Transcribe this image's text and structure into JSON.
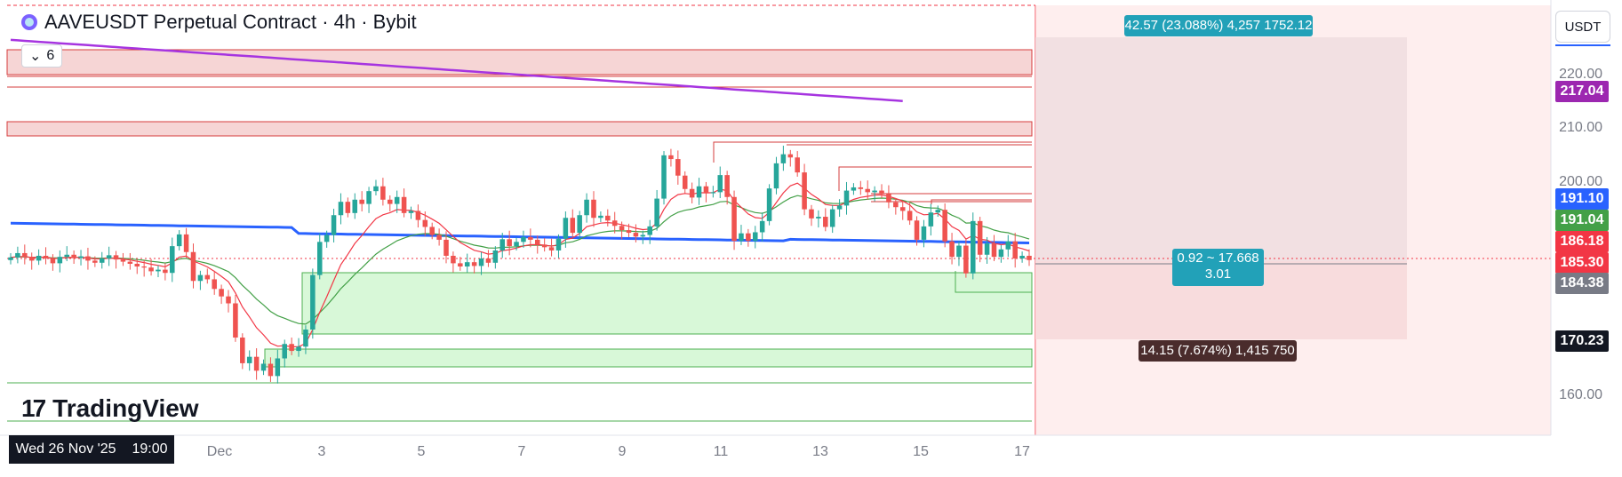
{
  "header": {
    "title": "AAVEUSDT Perpetual Contract · 4h · Bybit",
    "indicator_count": "6"
  },
  "brand": {
    "logo_text": "TradingView"
  },
  "currency": {
    "label": "USDT"
  },
  "price_axis": {
    "ticks": [
      "220.00",
      "210.00",
      "200.00",
      "160.00"
    ],
    "badges": [
      {
        "label": "217.04",
        "color": "#9c27b0"
      },
      {
        "label": "191.10",
        "color": "#2962ff"
      },
      {
        "label": "191.04",
        "color": "#43a047"
      },
      {
        "label": "186.18",
        "color": "#f23645"
      },
      {
        "label": "185.30",
        "color": "#f23645"
      },
      {
        "label": "184.38",
        "color": "#787b86"
      },
      {
        "label": "170.23",
        "color": "#131722"
      }
    ]
  },
  "time_axis": {
    "crosshair_date": "Wed 26 Nov '25",
    "crosshair_time": "19:00",
    "labels": [
      "Dec",
      "3",
      "5",
      "7",
      "9",
      "11",
      "13",
      "15",
      "17"
    ]
  },
  "position_tool": {
    "target_label": "42.57 (23.088%) 4,257 1752.12",
    "center_line1": "0.92 ~ 17.668",
    "center_line2": "3.01",
    "stop_label": "14.15 (7.674%) 1,415 750"
  },
  "colors": {
    "up": "#26a69a",
    "down": "#ef5350",
    "ema_fast": "#f23645",
    "ema_mid": "#43a047",
    "ema_slow": "#2962ff",
    "ema_long": "#a634e0",
    "profit_zone": "#d9d9e6",
    "loss_zone": "#fde0e0",
    "callout": "#22a1b8"
  }
}
